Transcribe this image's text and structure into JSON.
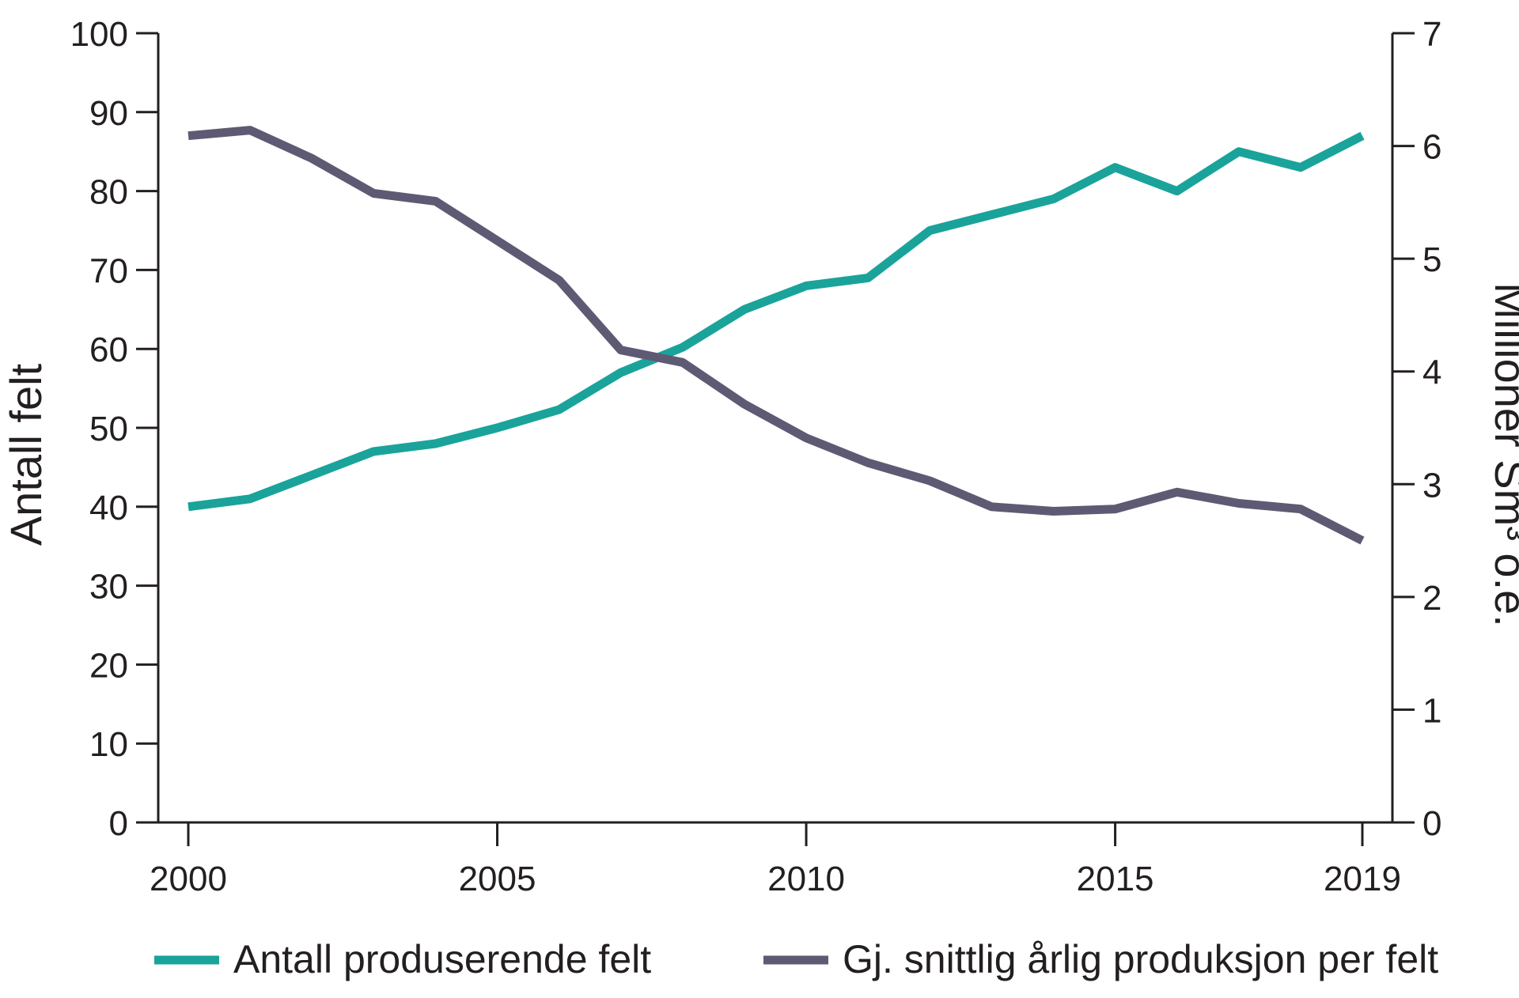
{
  "chart_data": {
    "type": "line",
    "x": [
      2000,
      2001,
      2002,
      2003,
      2004,
      2005,
      2006,
      2007,
      2008,
      2009,
      2010,
      2011,
      2012,
      2013,
      2014,
      2015,
      2016,
      2017,
      2018,
      2019
    ],
    "x_ticks": [
      "2000",
      "2005",
      "2010",
      "2015",
      "2019"
    ],
    "xlim": [
      2000,
      2019
    ],
    "ylabel": "Antall felt",
    "ylim": [
      0,
      100
    ],
    "y_ticks": [
      "0",
      "10",
      "20",
      "30",
      "40",
      "50",
      "60",
      "70",
      "80",
      "90",
      "100"
    ],
    "y2label": "Millioner Sm³ o.e.",
    "y2lim": [
      0,
      7
    ],
    "y2_ticks": [
      "0",
      "1",
      "2",
      "3",
      "4",
      "5",
      "6",
      "7"
    ],
    "grid": false,
    "legend_position": "bottom",
    "series": [
      {
        "name": "Antall produserende felt",
        "axis": "left",
        "color": "#1aa39a",
        "values": [
          40,
          41,
          44,
          47,
          48,
          50,
          52.3,
          57,
          60.2,
          65,
          68,
          69,
          75,
          77,
          79,
          83,
          80,
          85,
          83,
          87
        ]
      },
      {
        "name": "Gj. snittlig årlig produksjon per felt",
        "axis": "right",
        "color": "#5f5a73",
        "values": [
          6.09,
          6.14,
          5.89,
          5.58,
          5.51,
          5.16,
          4.81,
          4.19,
          4.08,
          3.71,
          3.41,
          3.19,
          3.03,
          2.8,
          2.76,
          2.78,
          2.93,
          2.83,
          2.78,
          2.5
        ]
      }
    ]
  }
}
